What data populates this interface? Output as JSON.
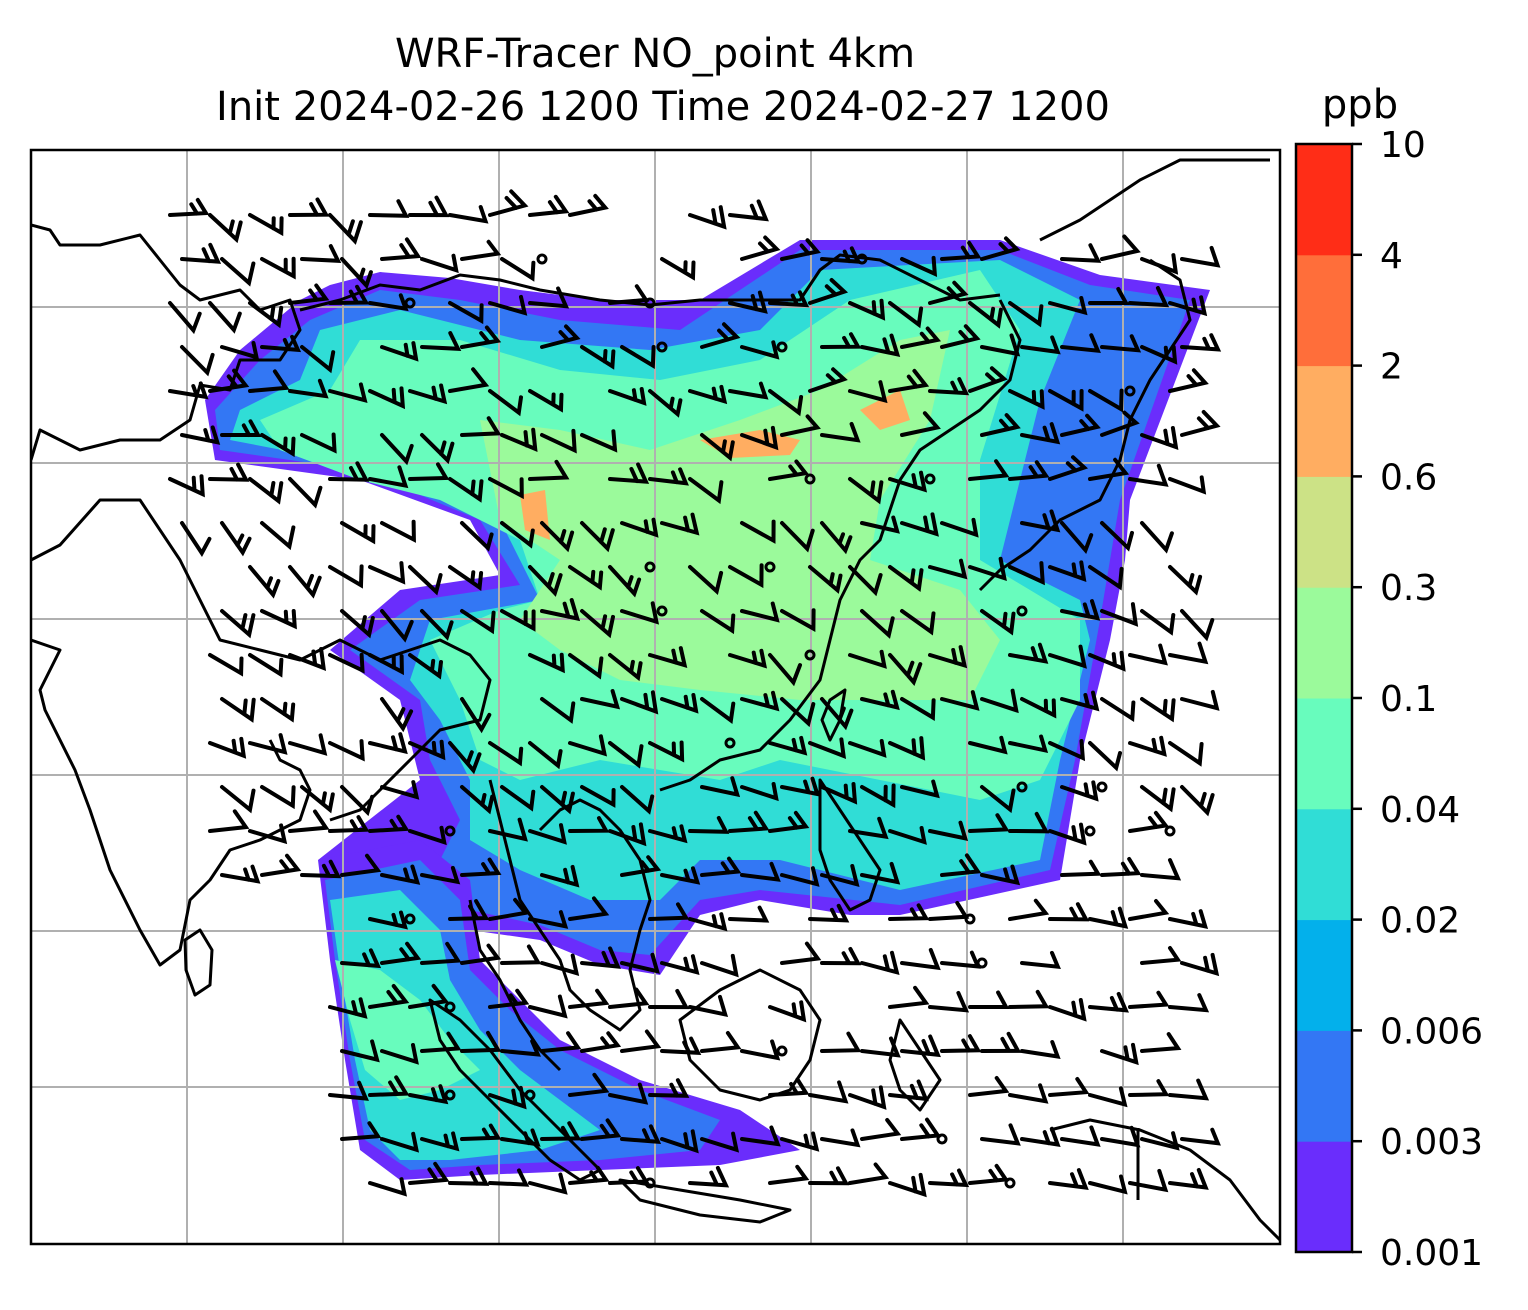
{
  "title": {
    "line1": "WRF-Tracer NO_point 4km",
    "line2": "Init 2024-02-26 1200 Time 2024-02-27 1200"
  },
  "colorbar": {
    "unit": "ppb",
    "levels": [
      "0.001",
      "0.003",
      "0.006",
      "0.02",
      "0.04",
      "0.1",
      "0.3",
      "0.6",
      "2",
      "4",
      "10"
    ],
    "colors": [
      "#6a2dfc",
      "#3377f4",
      "#03b0eb",
      "#30ddd6",
      "#68fcbd",
      "#9bfa9b",
      "#cce286",
      "#ffad61",
      "#ff6e3a",
      "#ff2d17"
    ]
  },
  "map": {
    "gridlines": true,
    "coastline_color": "#000000",
    "grid_color": "#b0b0b0"
  }
}
